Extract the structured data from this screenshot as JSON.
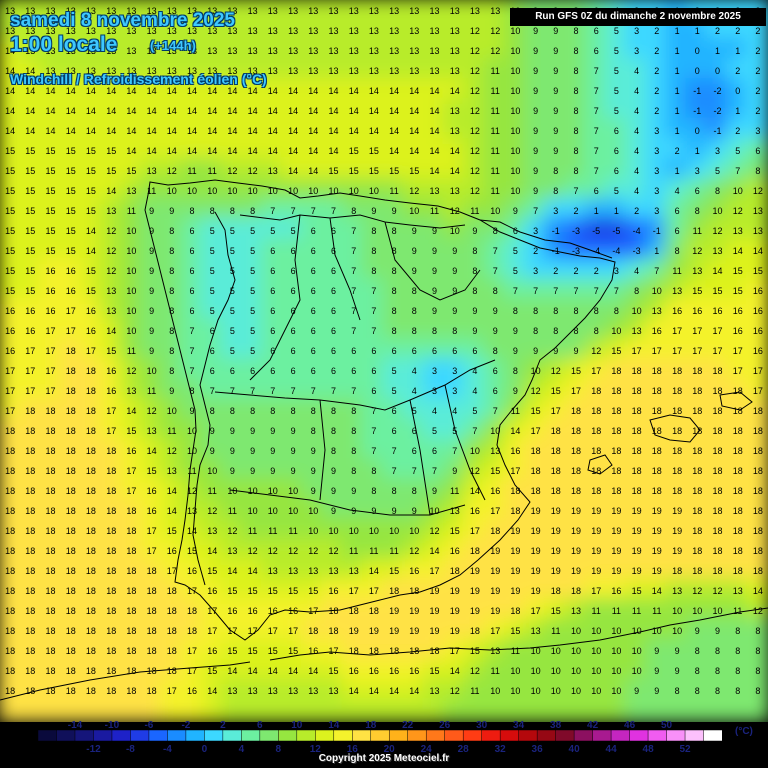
{
  "header": {
    "date": "samedi 8 novembre 2025",
    "time": "1:00 locale",
    "lead": "(+144h)",
    "parameter": "Windchill / Refroidissement éolien (°C)",
    "run": "Run GFS 0Z du dimanche 2 novembre 2025"
  },
  "legend": {
    "unit": "(°C)",
    "top_labels": [
      "-14",
      "-10",
      "-6",
      "-2",
      "2",
      "6",
      "10",
      "14",
      "18",
      "22",
      "26",
      "30",
      "34",
      "38",
      "42",
      "46",
      "50"
    ],
    "bottom_labels": [
      "-12",
      "-8",
      "-4",
      "0",
      "4",
      "8",
      "12",
      "16",
      "20",
      "24",
      "28",
      "32",
      "36",
      "40",
      "44",
      "48",
      "52"
    ],
    "colors": [
      "#0a0a3c",
      "#10105a",
      "#15157a",
      "#1a1aa0",
      "#1e22c8",
      "#1f3ce6",
      "#1a66ff",
      "#1a8cff",
      "#20b4ff",
      "#3cd8ff",
      "#5aecd8",
      "#6cf0a0",
      "#7ee870",
      "#96e640",
      "#b8ec2a",
      "#dcf21e",
      "#f4f22c",
      "#ffe244",
      "#ffcc30",
      "#ffb21a",
      "#ff961a",
      "#ff781a",
      "#ff5a1a",
      "#ff3c14",
      "#ee1c10",
      "#d60c0c",
      "#b4080c",
      "#960814",
      "#800a2a",
      "#8c1060",
      "#a81a90",
      "#c426c0",
      "#e032e0",
      "#f05cf0",
      "#f890f8",
      "#fcc0fc",
      "#ffffff"
    ]
  },
  "map": {
    "cols": 38,
    "rows": 36,
    "grid": [
      [
        13,
        13,
        13,
        13,
        13,
        13,
        13,
        13,
        13,
        13,
        13,
        13,
        13,
        13,
        13,
        13,
        13,
        13,
        13,
        13,
        13,
        13,
        13,
        13,
        13,
        10,
        9,
        9,
        8,
        6,
        4,
        3,
        2,
        1,
        2,
        2,
        2,
        2
      ],
      [
        13,
        13,
        13,
        13,
        13,
        13,
        13,
        13,
        13,
        13,
        13,
        13,
        13,
        13,
        13,
        13,
        13,
        13,
        13,
        13,
        13,
        13,
        13,
        12,
        12,
        10,
        9,
        9,
        8,
        6,
        5,
        3,
        2,
        1,
        1,
        2,
        2,
        2
      ],
      [
        14,
        13,
        13,
        13,
        13,
        13,
        13,
        13,
        13,
        13,
        13,
        13,
        13,
        13,
        13,
        13,
        13,
        13,
        13,
        13,
        13,
        13,
        13,
        12,
        12,
        10,
        9,
        9,
        8,
        6,
        5,
        3,
        2,
        1,
        0,
        1,
        1,
        2
      ],
      [
        14,
        14,
        13,
        13,
        13,
        13,
        13,
        13,
        13,
        13,
        13,
        13,
        13,
        13,
        13,
        13,
        13,
        13,
        13,
        13,
        13,
        13,
        13,
        12,
        11,
        10,
        9,
        9,
        8,
        7,
        5,
        4,
        2,
        1,
        0,
        0,
        2,
        2
      ],
      [
        14,
        14,
        14,
        14,
        14,
        14,
        14,
        14,
        14,
        14,
        14,
        14,
        14,
        14,
        14,
        14,
        14,
        14,
        14,
        14,
        14,
        14,
        14,
        12,
        11,
        10,
        9,
        9,
        8,
        7,
        5,
        4,
        2,
        1,
        -1,
        -2,
        0,
        2
      ],
      [
        14,
        14,
        14,
        14,
        14,
        14,
        14,
        14,
        14,
        14,
        14,
        14,
        14,
        14,
        14,
        14,
        14,
        14,
        14,
        14,
        14,
        14,
        13,
        12,
        11,
        10,
        9,
        9,
        8,
        7,
        5,
        4,
        2,
        1,
        -1,
        -2,
        1,
        2
      ],
      [
        14,
        14,
        14,
        14,
        14,
        14,
        14,
        14,
        14,
        14,
        14,
        14,
        14,
        14,
        14,
        14,
        14,
        14,
        14,
        14,
        14,
        14,
        13,
        12,
        11,
        10,
        9,
        9,
        8,
        7,
        6,
        4,
        3,
        1,
        0,
        -1,
        2,
        3
      ],
      [
        15,
        15,
        15,
        15,
        15,
        15,
        14,
        14,
        14,
        14,
        14,
        14,
        14,
        14,
        14,
        14,
        14,
        15,
        15,
        14,
        14,
        14,
        14,
        12,
        11,
        10,
        9,
        9,
        8,
        7,
        6,
        4,
        3,
        2,
        1,
        3,
        5,
        6
      ],
      [
        15,
        15,
        15,
        15,
        15,
        15,
        15,
        13,
        12,
        11,
        11,
        12,
        12,
        13,
        14,
        14,
        15,
        15,
        15,
        15,
        15,
        14,
        14,
        12,
        11,
        10,
        9,
        8,
        8,
        7,
        6,
        4,
        3,
        1,
        3,
        5,
        7,
        8
      ],
      [
        15,
        15,
        15,
        15,
        15,
        14,
        13,
        11,
        10,
        10,
        10,
        10,
        10,
        10,
        10,
        10,
        10,
        10,
        10,
        11,
        12,
        13,
        13,
        12,
        11,
        10,
        9,
        8,
        7,
        6,
        5,
        4,
        3,
        4,
        6,
        8,
        10,
        12
      ],
      [
        15,
        15,
        15,
        15,
        15,
        13,
        11,
        9,
        9,
        8,
        8,
        8,
        8,
        7,
        7,
        7,
        7,
        8,
        9,
        9,
        10,
        11,
        12,
        11,
        10,
        9,
        7,
        3,
        2,
        1,
        1,
        2,
        3,
        6,
        8,
        10,
        12,
        13
      ],
      [
        15,
        15,
        15,
        15,
        14,
        12,
        10,
        9,
        8,
        6,
        5,
        5,
        5,
        5,
        5,
        6,
        6,
        7,
        8,
        8,
        9,
        9,
        10,
        9,
        8,
        6,
        3,
        -1,
        -3,
        -5,
        -5,
        -4,
        -1,
        6,
        11,
        12,
        13,
        13
      ],
      [
        15,
        15,
        15,
        15,
        14,
        12,
        10,
        9,
        8,
        6,
        5,
        5,
        5,
        6,
        6,
        6,
        6,
        7,
        8,
        8,
        9,
        9,
        9,
        8,
        7,
        5,
        2,
        -1,
        -3,
        -4,
        -4,
        -3,
        1,
        8,
        12,
        13,
        14,
        14
      ],
      [
        15,
        15,
        16,
        16,
        15,
        12,
        10,
        9,
        8,
        6,
        5,
        5,
        5,
        6,
        6,
        6,
        6,
        7,
        8,
        8,
        9,
        9,
        9,
        8,
        7,
        5,
        3,
        2,
        2,
        2,
        3,
        4,
        7,
        11,
        13,
        14,
        15,
        15
      ],
      [
        15,
        15,
        16,
        16,
        15,
        13,
        10,
        9,
        8,
        6,
        5,
        5,
        5,
        6,
        6,
        6,
        6,
        7,
        7,
        8,
        8,
        9,
        9,
        8,
        8,
        7,
        7,
        7,
        7,
        7,
        7,
        8,
        10,
        13,
        15,
        15,
        15,
        16
      ],
      [
        16,
        16,
        16,
        17,
        16,
        13,
        10,
        9,
        8,
        6,
        5,
        5,
        5,
        6,
        6,
        6,
        6,
        7,
        7,
        8,
        8,
        9,
        9,
        9,
        9,
        8,
        8,
        8,
        8,
        8,
        8,
        10,
        13,
        16,
        16,
        16,
        16,
        16
      ],
      [
        16,
        16,
        17,
        17,
        16,
        14,
        10,
        9,
        8,
        7,
        6,
        5,
        5,
        6,
        6,
        6,
        6,
        7,
        7,
        8,
        8,
        8,
        8,
        9,
        9,
        9,
        8,
        8,
        8,
        8,
        10,
        13,
        16,
        17,
        17,
        17,
        16,
        16
      ],
      [
        16,
        17,
        17,
        18,
        17,
        15,
        11,
        9,
        8,
        7,
        6,
        5,
        5,
        6,
        6,
        6,
        6,
        6,
        6,
        6,
        6,
        6,
        6,
        6,
        8,
        9,
        9,
        9,
        9,
        12,
        15,
        17,
        17,
        17,
        17,
        17,
        17,
        16
      ],
      [
        17,
        17,
        17,
        18,
        18,
        16,
        12,
        10,
        8,
        7,
        6,
        6,
        6,
        6,
        6,
        6,
        6,
        6,
        6,
        5,
        4,
        3,
        3,
        4,
        6,
        8,
        10,
        12,
        15,
        17,
        18,
        18,
        18,
        18,
        18,
        18,
        17,
        17
      ],
      [
        17,
        17,
        17,
        18,
        18,
        16,
        13,
        11,
        9,
        8,
        7,
        7,
        7,
        7,
        7,
        7,
        7,
        7,
        6,
        5,
        4,
        3,
        3,
        4,
        6,
        9,
        12,
        15,
        17,
        18,
        18,
        18,
        18,
        18,
        18,
        18,
        18,
        17
      ],
      [
        17,
        18,
        18,
        18,
        18,
        17,
        14,
        12,
        10,
        9,
        8,
        8,
        8,
        8,
        8,
        8,
        8,
        8,
        7,
        6,
        5,
        4,
        4,
        5,
        7,
        11,
        15,
        17,
        18,
        18,
        18,
        18,
        18,
        18,
        18,
        18,
        18,
        18
      ],
      [
        18,
        18,
        18,
        18,
        18,
        17,
        15,
        13,
        11,
        10,
        9,
        9,
        9,
        9,
        9,
        8,
        8,
        8,
        7,
        6,
        6,
        5,
        5,
        7,
        10,
        14,
        17,
        18,
        18,
        18,
        18,
        18,
        18,
        18,
        18,
        18,
        18,
        18
      ],
      [
        18,
        18,
        18,
        18,
        18,
        18,
        16,
        14,
        12,
        10,
        9,
        9,
        9,
        9,
        9,
        9,
        8,
        8,
        7,
        7,
        6,
        6,
        7,
        10,
        13,
        16,
        18,
        18,
        18,
        18,
        18,
        18,
        18,
        18,
        18,
        18,
        18,
        18
      ],
      [
        18,
        18,
        18,
        18,
        18,
        18,
        17,
        15,
        13,
        11,
        10,
        9,
        9,
        9,
        9,
        9,
        9,
        8,
        8,
        7,
        7,
        7,
        9,
        12,
        15,
        17,
        18,
        18,
        18,
        18,
        18,
        18,
        18,
        18,
        18,
        18,
        18,
        18
      ],
      [
        18,
        18,
        18,
        18,
        18,
        18,
        17,
        16,
        14,
        12,
        11,
        10,
        10,
        10,
        10,
        9,
        9,
        9,
        8,
        8,
        8,
        9,
        11,
        14,
        16,
        18,
        18,
        18,
        18,
        18,
        18,
        18,
        18,
        18,
        18,
        18,
        18,
        18
      ],
      [
        18,
        18,
        18,
        18,
        18,
        18,
        18,
        16,
        14,
        13,
        12,
        11,
        10,
        10,
        10,
        10,
        9,
        9,
        9,
        9,
        9,
        10,
        13,
        16,
        17,
        18,
        19,
        19,
        19,
        19,
        19,
        19,
        19,
        19,
        18,
        18,
        18,
        18
      ],
      [
        18,
        18,
        18,
        18,
        18,
        18,
        18,
        17,
        15,
        14,
        13,
        12,
        11,
        11,
        11,
        10,
        10,
        10,
        10,
        10,
        10,
        12,
        15,
        17,
        18,
        19,
        19,
        19,
        19,
        19,
        19,
        19,
        19,
        19,
        18,
        18,
        18,
        18
      ],
      [
        18,
        18,
        18,
        18,
        18,
        18,
        18,
        17,
        16,
        15,
        14,
        13,
        12,
        12,
        12,
        12,
        12,
        11,
        11,
        11,
        12,
        14,
        16,
        18,
        19,
        19,
        19,
        19,
        19,
        19,
        19,
        19,
        19,
        19,
        18,
        18,
        18,
        18
      ],
      [
        18,
        18,
        18,
        18,
        18,
        18,
        18,
        18,
        17,
        16,
        15,
        14,
        14,
        13,
        13,
        13,
        13,
        13,
        14,
        15,
        16,
        17,
        18,
        19,
        19,
        19,
        19,
        19,
        19,
        19,
        19,
        19,
        19,
        18,
        18,
        18,
        18,
        18
      ],
      [
        18,
        18,
        18,
        18,
        18,
        18,
        18,
        18,
        18,
        17,
        16,
        15,
        15,
        15,
        15,
        15,
        16,
        17,
        17,
        18,
        18,
        19,
        19,
        19,
        19,
        19,
        19,
        18,
        18,
        17,
        16,
        15,
        14,
        13,
        12,
        12,
        13,
        14
      ],
      [
        18,
        18,
        18,
        18,
        18,
        18,
        18,
        18,
        18,
        18,
        17,
        16,
        16,
        16,
        16,
        17,
        18,
        18,
        18,
        19,
        19,
        19,
        19,
        19,
        19,
        18,
        17,
        15,
        13,
        11,
        11,
        11,
        11,
        10,
        10,
        10,
        11,
        12
      ],
      [
        18,
        18,
        18,
        18,
        18,
        18,
        18,
        18,
        18,
        18,
        17,
        17,
        17,
        17,
        17,
        18,
        18,
        19,
        19,
        19,
        19,
        19,
        19,
        18,
        17,
        15,
        13,
        11,
        10,
        10,
        10,
        10,
        10,
        10,
        9,
        9,
        8,
        8
      ],
      [
        18,
        18,
        18,
        18,
        18,
        18,
        18,
        18,
        18,
        17,
        16,
        15,
        15,
        15,
        15,
        16,
        17,
        18,
        18,
        18,
        18,
        18,
        17,
        15,
        13,
        11,
        10,
        10,
        10,
        10,
        10,
        10,
        9,
        9,
        8,
        8,
        8,
        8
      ],
      [
        18,
        18,
        18,
        18,
        18,
        18,
        18,
        18,
        18,
        17,
        15,
        14,
        14,
        14,
        14,
        14,
        15,
        16,
        16,
        16,
        16,
        15,
        14,
        12,
        11,
        10,
        10,
        10,
        10,
        10,
        10,
        10,
        9,
        9,
        8,
        8,
        8,
        8
      ],
      [
        18,
        18,
        18,
        18,
        18,
        18,
        18,
        18,
        17,
        16,
        14,
        13,
        13,
        13,
        13,
        13,
        13,
        14,
        14,
        14,
        14,
        13,
        12,
        11,
        10,
        10,
        10,
        10,
        10,
        10,
        10,
        9,
        9,
        8,
        8,
        8,
        8,
        8
      ],
      [
        18,
        18,
        18,
        18,
        18,
        18,
        18,
        18,
        17,
        16,
        14,
        13,
        13,
        13,
        13,
        13,
        13,
        13,
        13,
        13,
        13,
        12,
        11,
        10,
        10,
        10,
        10,
        10,
        10,
        10,
        10,
        9,
        9,
        8,
        8,
        8,
        8,
        8
      ]
    ]
  }
}
